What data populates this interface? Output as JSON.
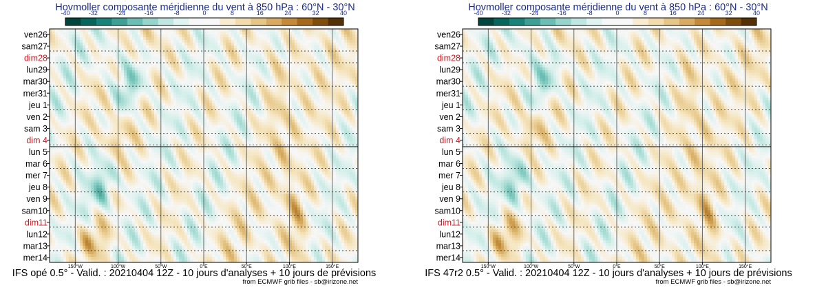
{
  "colorbar": {
    "ticks": [
      "-40",
      "-32",
      "-24",
      "-16",
      "-8",
      "0",
      "8",
      "16",
      "24",
      "32",
      "40"
    ],
    "colors": [
      "#01463c",
      "#05665b",
      "#1a8379",
      "#3d9f95",
      "#6cbeb4",
      "#97d4cb",
      "#bfe6e1",
      "#dff3f0",
      "#f7f7f7",
      "#f7f7f7",
      "#f8ebcf",
      "#f2dcae",
      "#e6c687",
      "#d9ab62",
      "#c5893a",
      "#a6681a",
      "#7f4e0b",
      "#543005"
    ]
  },
  "chart_data": [
    {
      "type": "heatmap",
      "title": "Hovmoller composante méridienne du vent à 850 hPa : 60°N - 30°N",
      "footer": "IFS opé 0.5° - Valid. : 20210404 12Z - 10 jours d'analyses + 10 jours de prévisions",
      "credit": "from ECMWF grib files - sb@irizone.net",
      "x_ticks": [
        "150°W",
        "100°W",
        "50°W",
        "0°E",
        "50°E",
        "100°E",
        "150°E"
      ],
      "x_tick_values": [
        -150,
        -100,
        -50,
        0,
        50,
        100,
        150
      ],
      "xlim": [
        -180,
        180
      ],
      "y_labels": [
        "ven26",
        "sam27",
        "dim28",
        "lun29",
        "mar30",
        "mer31",
        "jeu 1",
        "ven 2",
        "sam 3",
        "dim 4",
        "lun 5",
        "mar 6",
        "mer 7",
        "jeu 8",
        "ven 9",
        "sam10",
        "dim11",
        "lun12",
        "mar13",
        "mer14"
      ],
      "sunday_labels": [
        "dim28",
        "dim 4",
        "dim11"
      ],
      "colorbar_range": [
        -40,
        40
      ],
      "colorbar_step": 8,
      "analysis_forecast_split": "lun 5"
    },
    {
      "type": "heatmap",
      "title": "Hovmoller composante méridienne du vent à 850 hPa : 60°N - 30°N",
      "footer": "IFS 47r2 0.5° - Valid. : 20210404 12Z - 10 jours d'analyses + 10 jours de prévisions",
      "credit": "from ECMWF grib files - sb@irizone.net",
      "x_ticks": [
        "150°W",
        "100°W",
        "50°W",
        "0°E",
        "50°E",
        "100°E",
        "150°E"
      ],
      "x_tick_values": [
        -150,
        -100,
        -50,
        0,
        50,
        100,
        150
      ],
      "xlim": [
        -180,
        180
      ],
      "y_labels": [
        "ven26",
        "sam27",
        "dim28",
        "lun29",
        "mar30",
        "mer31",
        "jeu 1",
        "ven 2",
        "sam 3",
        "dim 4",
        "lun 5",
        "mar 6",
        "mer 7",
        "jeu 8",
        "ven 9",
        "sam10",
        "dim11",
        "lun12",
        "mar13",
        "mer14"
      ],
      "sunday_labels": [
        "dim28",
        "dim 4",
        "dim11"
      ],
      "colorbar_range": [
        -40,
        40
      ],
      "colorbar_step": 8,
      "analysis_forecast_split": "lun 5"
    }
  ]
}
